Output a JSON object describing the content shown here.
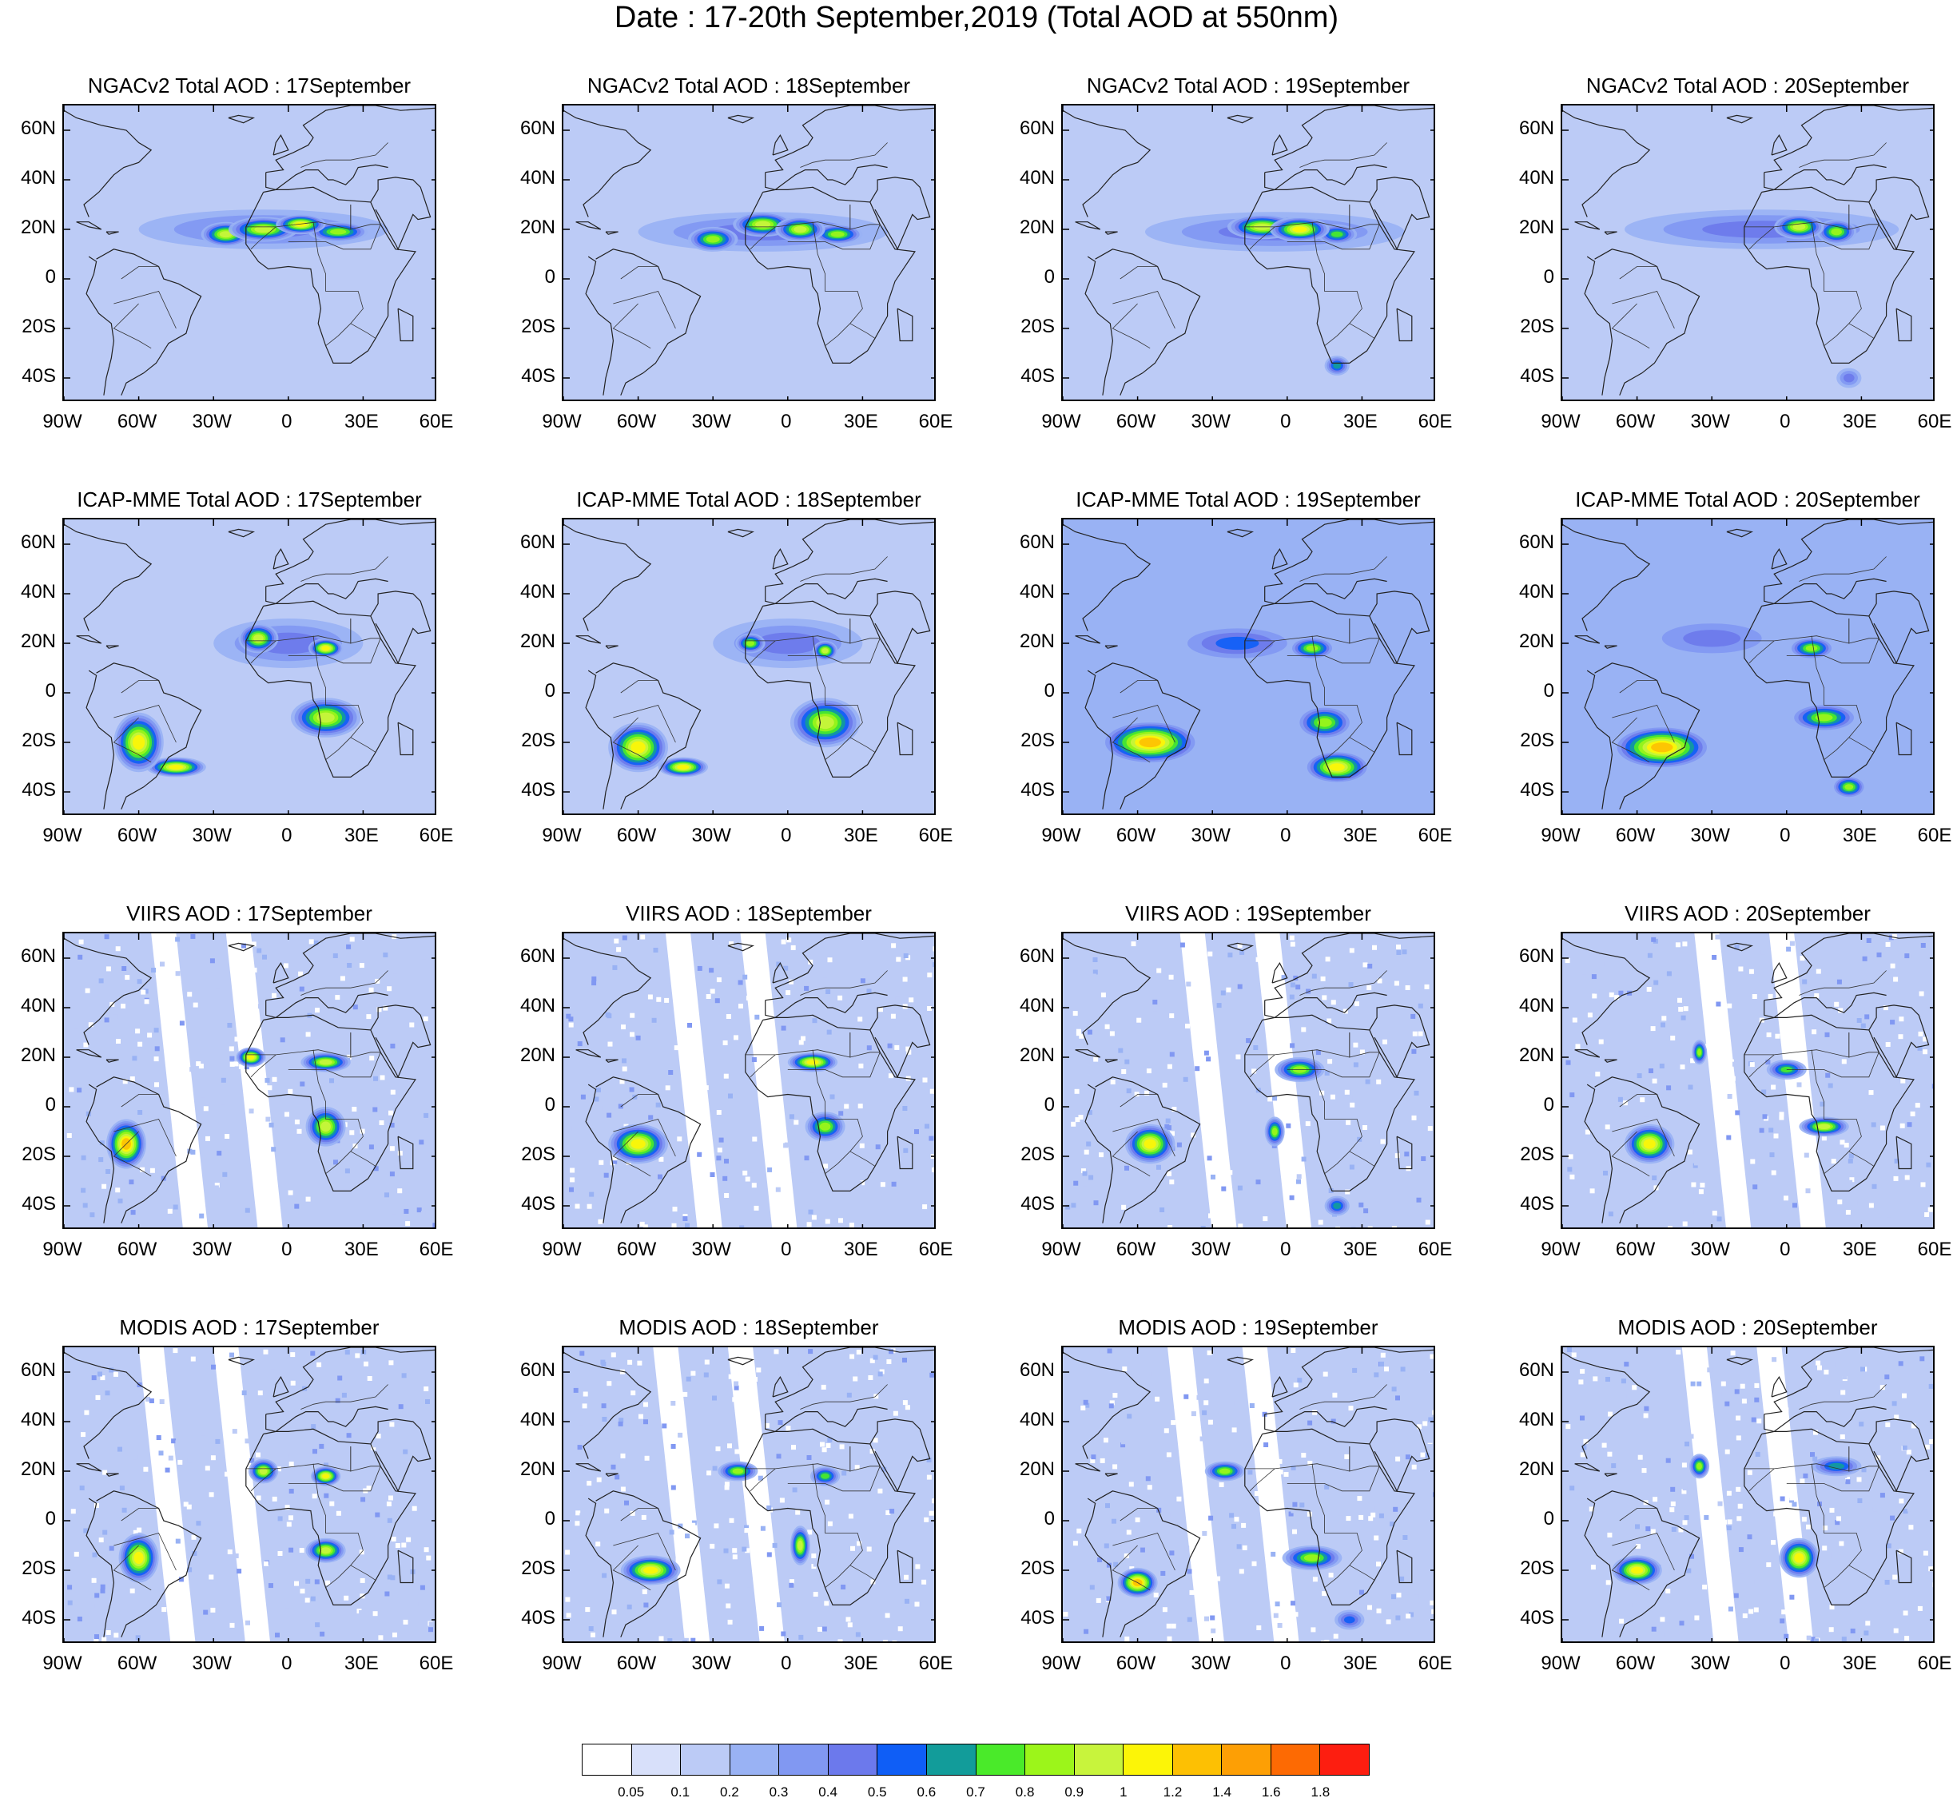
{
  "title": "Date : 17-20th September,2019 (Total AOD at 550nm)",
  "rows": [
    {
      "product": "NGACv2 Total AOD",
      "days": [
        "NGACv2 Total AOD : 17September",
        "NGACv2 Total AOD : 18September",
        "NGACv2 Total AOD : 19September",
        "NGACv2 Total AOD : 20September"
      ]
    },
    {
      "product": "ICAP-MME Total AOD",
      "days": [
        "ICAP-MME Total AOD : 17September",
        "ICAP-MME Total AOD : 18September",
        "ICAP-MME Total AOD : 19September",
        "ICAP-MME Total AOD : 20September"
      ]
    },
    {
      "product": "VIIRS AOD",
      "days": [
        "VIIRS AOD : 17September",
        "VIIRS AOD : 18September",
        "VIIRS AOD : 19September",
        "VIIRS AOD : 20September"
      ]
    },
    {
      "product": "MODIS AOD",
      "days": [
        "MODIS AOD : 17September",
        "MODIS AOD : 18September",
        "MODIS AOD : 19September",
        "MODIS AOD : 20September"
      ]
    }
  ],
  "axes": {
    "lat_ticks": [
      "60N",
      "40N",
      "20N",
      "0",
      "20S",
      "40S"
    ],
    "lat_values": [
      60,
      40,
      20,
      0,
      -20,
      -40
    ],
    "lon_ticks": [
      "90W",
      "60W",
      "30W",
      "0",
      "30E",
      "60E"
    ],
    "lon_values": [
      -90,
      -60,
      -30,
      0,
      30,
      60
    ],
    "lon_range": [
      -90,
      60
    ],
    "lat_range": [
      -50,
      70
    ]
  },
  "colorbar": {
    "colors": [
      "#ffffff",
      "#d8e0fa",
      "#bccbf6",
      "#99b2f4",
      "#8198f2",
      "#6c79ec",
      "#0f5ef6",
      "#129c9a",
      "#4aea2a",
      "#9cf51a",
      "#c8f43c",
      "#fcf507",
      "#fdc003",
      "#fd9f05",
      "#fd6a03",
      "#fd1e10"
    ],
    "labels": [
      "0.05",
      "0.1",
      "0.2",
      "0.3",
      "0.4",
      "0.5",
      "0.6",
      "0.7",
      "0.8",
      "0.9",
      "1",
      "1.2",
      "1.4",
      "1.6",
      "1.8"
    ]
  },
  "chart_data": {
    "type": "heatmap",
    "title": "Date : 17-20th September,2019 (Total AOD at 550nm)",
    "variable": "Total AOD at 550nm",
    "dates": [
      "17September",
      "18September",
      "19September",
      "20September"
    ],
    "products": [
      "NGACv2 Total AOD",
      "ICAP-MME Total AOD",
      "VIIRS AOD",
      "MODIS AOD"
    ],
    "xlim": [
      -90,
      60
    ],
    "ylim": [
      -50,
      70
    ],
    "contour_levels": [
      0.05,
      0.1,
      0.2,
      0.3,
      0.4,
      0.5,
      0.6,
      0.7,
      0.8,
      0.9,
      1,
      1.2,
      1.4,
      1.6,
      1.8
    ],
    "background_aod": [
      [
        0.12,
        0.12,
        0.15,
        0.15
      ],
      [
        0.18,
        0.18,
        0.2,
        0.2
      ],
      [
        0.1,
        0.1,
        0.1,
        0.1
      ],
      [
        0.12,
        0.12,
        0.12,
        0.12
      ]
    ],
    "features": [
      [
        [
          {
            "lon": -25,
            "lat": 18,
            "rx": 10,
            "ry": 5,
            "aod": 0.9
          },
          {
            "lon": -10,
            "lat": 20,
            "rx": 14,
            "ry": 5,
            "aod": 0.95
          },
          {
            "lon": 5,
            "lat": 22,
            "rx": 10,
            "ry": 4,
            "aod": 1.0
          },
          {
            "lon": 20,
            "lat": 19,
            "rx": 12,
            "ry": 4,
            "aod": 0.85
          },
          {
            "lon": -10,
            "lat": 20,
            "rx": 50,
            "ry": 8,
            "aod": 0.45
          }
        ],
        [
          {
            "lon": -30,
            "lat": 16,
            "rx": 10,
            "ry": 5,
            "aod": 0.85
          },
          {
            "lon": -10,
            "lat": 22,
            "rx": 12,
            "ry": 5,
            "aod": 0.95
          },
          {
            "lon": 5,
            "lat": 20,
            "rx": 10,
            "ry": 5,
            "aod": 0.95
          },
          {
            "lon": 20,
            "lat": 18,
            "rx": 10,
            "ry": 4,
            "aod": 0.8
          },
          {
            "lon": -10,
            "lat": 19,
            "rx": 50,
            "ry": 8,
            "aod": 0.45
          }
        ],
        [
          {
            "lon": -10,
            "lat": 21,
            "rx": 14,
            "ry": 5,
            "aod": 0.9
          },
          {
            "lon": 5,
            "lat": 20,
            "rx": 12,
            "ry": 5,
            "aod": 1.05
          },
          {
            "lon": 20,
            "lat": 18,
            "rx": 8,
            "ry": 4,
            "aod": 0.7
          },
          {
            "lon": -5,
            "lat": 19,
            "rx": 52,
            "ry": 8,
            "aod": 0.45
          },
          {
            "lon": 20,
            "lat": -35,
            "rx": 5,
            "ry": 4,
            "aod": 0.6
          }
        ],
        [
          {
            "lon": 5,
            "lat": 21,
            "rx": 10,
            "ry": 5,
            "aod": 0.95
          },
          {
            "lon": 20,
            "lat": 19,
            "rx": 8,
            "ry": 5,
            "aod": 0.8
          },
          {
            "lon": -10,
            "lat": 20,
            "rx": 55,
            "ry": 8,
            "aod": 0.4
          },
          {
            "lon": 25,
            "lat": -40,
            "rx": 5,
            "ry": 4,
            "aod": 0.45
          }
        ]
      ],
      [
        [
          {
            "lon": -12,
            "lat": 22,
            "rx": 8,
            "ry": 6,
            "aod": 0.9
          },
          {
            "lon": 15,
            "lat": 18,
            "rx": 7,
            "ry": 4,
            "aod": 1.1
          },
          {
            "lon": 15,
            "lat": -10,
            "rx": 14,
            "ry": 8,
            "aod": 0.95
          },
          {
            "lon": -60,
            "lat": -20,
            "rx": 10,
            "ry": 12,
            "aod": 1.1
          },
          {
            "lon": -45,
            "lat": -30,
            "rx": 12,
            "ry": 4,
            "aod": 1.0
          },
          {
            "lon": 0,
            "lat": 20,
            "rx": 30,
            "ry": 10,
            "aod": 0.45
          }
        ],
        [
          {
            "lon": -15,
            "lat": 20,
            "rx": 6,
            "ry": 4,
            "aod": 0.85
          },
          {
            "lon": 15,
            "lat": 17,
            "rx": 5,
            "ry": 4,
            "aod": 0.9
          },
          {
            "lon": 15,
            "lat": -12,
            "rx": 14,
            "ry": 10,
            "aod": 0.9
          },
          {
            "lon": -60,
            "lat": -22,
            "rx": 12,
            "ry": 10,
            "aod": 1.0
          },
          {
            "lon": -42,
            "lat": -30,
            "rx": 10,
            "ry": 4,
            "aod": 1.1
          },
          {
            "lon": 0,
            "lat": 20,
            "rx": 30,
            "ry": 10,
            "aod": 0.4
          }
        ],
        [
          {
            "lon": 10,
            "lat": 18,
            "rx": 8,
            "ry": 4,
            "aod": 0.8
          },
          {
            "lon": 15,
            "lat": -12,
            "rx": 10,
            "ry": 6,
            "aod": 0.85
          },
          {
            "lon": 20,
            "lat": -30,
            "rx": 12,
            "ry": 6,
            "aod": 1.0
          },
          {
            "lon": -55,
            "lat": -20,
            "rx": 18,
            "ry": 8,
            "aod": 1.2
          },
          {
            "lon": -20,
            "lat": 20,
            "rx": 20,
            "ry": 6,
            "aod": 0.5
          }
        ],
        [
          {
            "lon": 10,
            "lat": 18,
            "rx": 8,
            "ry": 4,
            "aod": 0.8
          },
          {
            "lon": 15,
            "lat": -10,
            "rx": 12,
            "ry": 5,
            "aod": 0.85
          },
          {
            "lon": 25,
            "lat": -38,
            "rx": 6,
            "ry": 4,
            "aod": 0.8
          },
          {
            "lon": -50,
            "lat": -22,
            "rx": 18,
            "ry": 8,
            "aod": 1.3
          },
          {
            "lon": -30,
            "lat": 22,
            "rx": 20,
            "ry": 6,
            "aod": 0.45
          }
        ]
      ],
      [
        [
          {
            "lon": -15,
            "lat": 20,
            "rx": 6,
            "ry": 4,
            "aod": 1.1
          },
          {
            "lon": 15,
            "lat": 18,
            "rx": 10,
            "ry": 4,
            "aod": 0.9
          },
          {
            "lon": -65,
            "lat": -15,
            "rx": 8,
            "ry": 10,
            "aod": 1.2
          },
          {
            "lon": 15,
            "lat": -8,
            "rx": 8,
            "ry": 8,
            "aod": 0.9
          }
        ],
        [
          {
            "lon": 10,
            "lat": 18,
            "rx": 10,
            "ry": 4,
            "aod": 1.0
          },
          {
            "lon": -60,
            "lat": -15,
            "rx": 12,
            "ry": 8,
            "aod": 1.1
          },
          {
            "lon": 15,
            "lat": -8,
            "rx": 8,
            "ry": 6,
            "aod": 0.85
          }
        ],
        [
          {
            "lon": 5,
            "lat": 15,
            "rx": 10,
            "ry": 5,
            "aod": 0.85
          },
          {
            "lon": -55,
            "lat": -15,
            "rx": 10,
            "ry": 8,
            "aod": 1.0
          },
          {
            "lon": 20,
            "lat": -40,
            "rx": 5,
            "ry": 4,
            "aod": 0.6
          },
          {
            "lon": -5,
            "lat": -10,
            "rx": 4,
            "ry": 6,
            "aod": 0.8
          }
        ],
        [
          {
            "lon": 15,
            "lat": -8,
            "rx": 10,
            "ry": 4,
            "aod": 0.9
          },
          {
            "lon": -55,
            "lat": -15,
            "rx": 10,
            "ry": 8,
            "aod": 1.0
          },
          {
            "lon": -35,
            "lat": 22,
            "rx": 3,
            "ry": 5,
            "aod": 0.85
          },
          {
            "lon": 0,
            "lat": 15,
            "rx": 8,
            "ry": 4,
            "aod": 0.7
          }
        ]
      ],
      [
        [
          {
            "lon": -10,
            "lat": 20,
            "rx": 6,
            "ry": 5,
            "aod": 0.9
          },
          {
            "lon": 15,
            "lat": 18,
            "rx": 6,
            "ry": 4,
            "aod": 1.1
          },
          {
            "lon": -60,
            "lat": -15,
            "rx": 8,
            "ry": 10,
            "aod": 1.1
          },
          {
            "lon": 15,
            "lat": -12,
            "rx": 8,
            "ry": 5,
            "aod": 0.9
          }
        ],
        [
          {
            "lon": -20,
            "lat": 20,
            "rx": 8,
            "ry": 4,
            "aod": 0.85
          },
          {
            "lon": -55,
            "lat": -20,
            "rx": 12,
            "ry": 6,
            "aod": 1.0
          },
          {
            "lon": 5,
            "lat": -10,
            "rx": 4,
            "ry": 8,
            "aod": 0.95
          },
          {
            "lon": 15,
            "lat": 18,
            "rx": 6,
            "ry": 4,
            "aod": 0.7
          }
        ],
        [
          {
            "lon": -25,
            "lat": 20,
            "rx": 8,
            "ry": 4,
            "aod": 0.85
          },
          {
            "lon": -60,
            "lat": -25,
            "rx": 8,
            "ry": 6,
            "aod": 1.3
          },
          {
            "lon": 10,
            "lat": -15,
            "rx": 12,
            "ry": 5,
            "aod": 0.85
          },
          {
            "lon": 25,
            "lat": -40,
            "rx": 6,
            "ry": 4,
            "aod": 0.55
          }
        ],
        [
          {
            "lon": -35,
            "lat": 22,
            "rx": 4,
            "ry": 5,
            "aod": 0.85
          },
          {
            "lon": 5,
            "lat": -15,
            "rx": 8,
            "ry": 8,
            "aod": 1.1
          },
          {
            "lon": -60,
            "lat": -20,
            "rx": 10,
            "ry": 6,
            "aod": 1.0
          },
          {
            "lon": 20,
            "lat": 22,
            "rx": 10,
            "ry": 4,
            "aod": 0.6
          }
        ]
      ]
    ]
  }
}
